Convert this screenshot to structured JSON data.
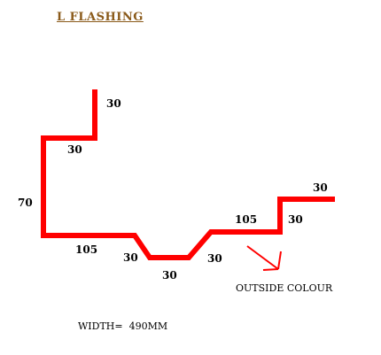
{
  "title": "L  FLASHING",
  "colors": {
    "profile": "#ff0000",
    "arrow": "#ff0000",
    "title": "#8a5a1a",
    "text": "#000000"
  },
  "dimensions": {
    "top_lip": "30",
    "top_return": "30",
    "left_height": "70",
    "bottom_left": "105",
    "channel_left_slope": "30",
    "channel_bottom": "30",
    "channel_right_slope": "30",
    "right_run": "105",
    "right_step": "30",
    "right_lip": "30"
  },
  "notes": {
    "outside_colour": "OUTSIDE COLOUR",
    "width": "WIDTH=  490MM"
  }
}
